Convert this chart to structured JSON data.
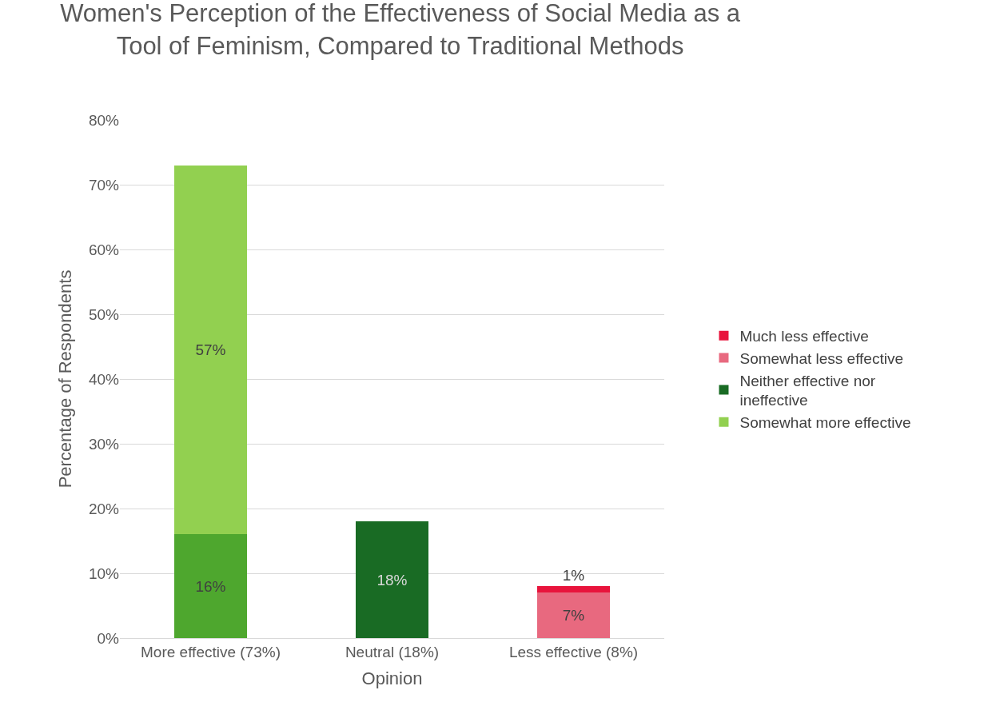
{
  "chart_data": {
    "type": "bar",
    "stacked": true,
    "title": "Women's Perception of the Effectiveness of Social Media as a Tool of Feminism, Compared to Traditional Methods",
    "xlabel": "Opinion",
    "ylabel": "Percentage of Respondents",
    "categories": [
      "More effective (73%)",
      "Neutral (18%)",
      "Less effective (8%)"
    ],
    "series": [
      {
        "color": "#4ea72e",
        "values": [
          16,
          null,
          null
        ],
        "value_labels": [
          "16%",
          null,
          null
        ]
      },
      {
        "name": "Somewhat more effective",
        "color": "#92d050",
        "values": [
          57,
          null,
          null
        ],
        "value_labels": [
          "57%",
          null,
          null
        ]
      },
      {
        "name": "Neither effective nor ineffective",
        "color": "#196b24",
        "values": [
          null,
          18,
          null
        ],
        "value_labels": [
          null,
          "18%",
          null
        ]
      },
      {
        "name": "Somewhat less effective",
        "color": "#e8697f",
        "values": [
          null,
          null,
          7
        ],
        "value_labels": [
          null,
          null,
          "7%"
        ]
      },
      {
        "name": "Much less effective",
        "color": "#e8143c",
        "values": [
          null,
          null,
          1
        ],
        "value_labels": [
          null,
          null,
          "1%"
        ]
      }
    ],
    "ylim": [
      0,
      80
    ],
    "yticks": [
      {
        "value": 0,
        "label": "0%"
      },
      {
        "value": 10,
        "label": "10%"
      },
      {
        "value": 20,
        "label": "20%"
      },
      {
        "value": 30,
        "label": "30%"
      },
      {
        "value": 40,
        "label": "40%"
      },
      {
        "value": 50,
        "label": "50%"
      },
      {
        "value": 60,
        "label": "60%"
      },
      {
        "value": 70,
        "label": "70%"
      },
      {
        "value": 80,
        "label": "80%"
      }
    ],
    "grid": "y",
    "legend": "right"
  }
}
